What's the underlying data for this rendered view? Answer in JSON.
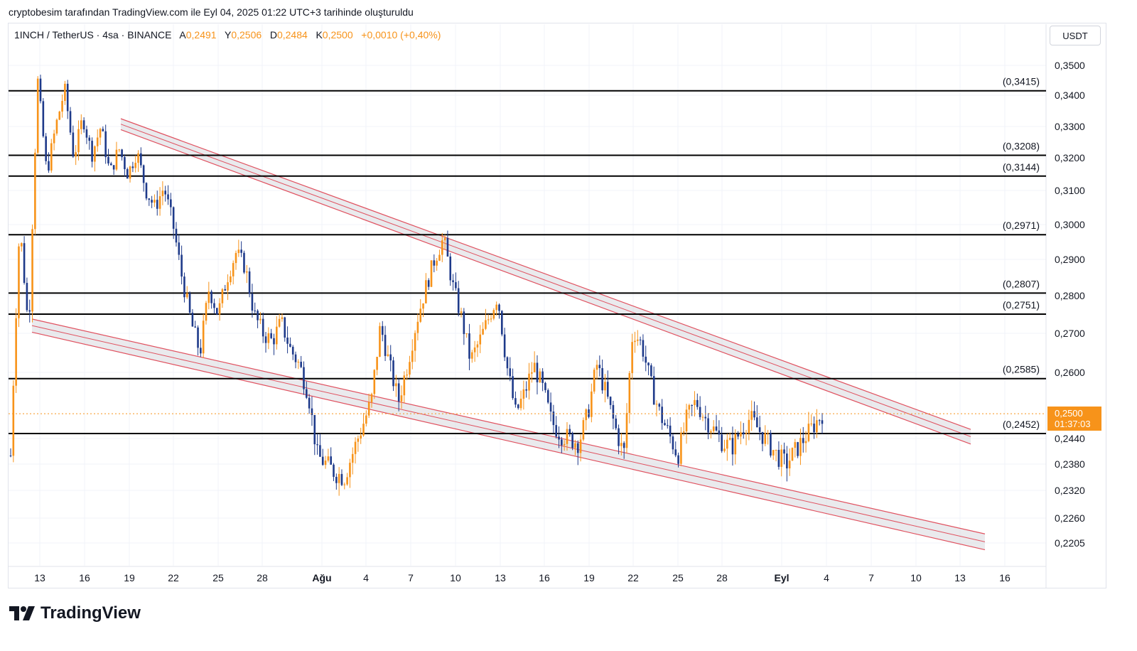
{
  "caption": "cryptobesim tarafından TradingView.com ile Eyl 04, 2025 01:22 UTC+3 tarihinde oluşturuldu",
  "legend": {
    "symbol": "1INCH / TetherUS · 4sa · BINANCE",
    "open_label": "A",
    "open": "0,2491",
    "high_label": "Y",
    "high": "0,2506",
    "low_label": "D",
    "low": "0,2484",
    "close_label": "K",
    "close": "0,2500",
    "change": "+0,0010 (+0,40%)"
  },
  "unit": "USDT",
  "current_price": {
    "value": "0,2500",
    "countdown": "01:37:03"
  },
  "brand": "TradingView",
  "colors": {
    "up": "#f7931a",
    "down": "#1e3a8a",
    "channel": "#e05260",
    "channel_fill": "#d9d9de",
    "level_line": "#000000",
    "accent": "#f7931a"
  },
  "chart_data": {
    "type": "candlestick",
    "x_ticks": [
      "13",
      "16",
      "19",
      "22",
      "25",
      "28",
      "Ağu",
      "4",
      "7",
      "10",
      "13",
      "16",
      "19",
      "22",
      "25",
      "28",
      "Eyl",
      "4",
      "7",
      "10",
      "13",
      "16"
    ],
    "y_ticks": [
      "0,3500",
      "0,3400",
      "0,3300",
      "0,3200",
      "0,3100",
      "0,3000",
      "0,2900",
      "0,2800",
      "0,2700",
      "0,2600",
      "0,2440",
      "0,2380",
      "0,2320",
      "0,2260",
      "0,2205"
    ],
    "y_tick_values": [
      0.35,
      0.34,
      0.33,
      0.32,
      0.31,
      0.3,
      0.29,
      0.28,
      0.27,
      0.26,
      0.244,
      0.238,
      0.232,
      0.226,
      0.2205
    ],
    "horizontal_levels": [
      {
        "value": 0.3415,
        "label": "(0,3415)"
      },
      {
        "value": 0.3208,
        "label": "(0,3208)"
      },
      {
        "value": 0.3144,
        "label": "(0,3144)"
      },
      {
        "value": 0.2971,
        "label": "(0,2971)"
      },
      {
        "value": 0.2807,
        "label": "(0,2807)"
      },
      {
        "value": 0.2751,
        "label": "(0,2751)"
      },
      {
        "value": 0.2585,
        "label": "(0,2585)"
      },
      {
        "value": 0.2452,
        "label": "(0,2452)"
      }
    ],
    "last_price": 0.25,
    "series_path": [
      [
        0,
        0.24
      ],
      [
        1,
        0.3
      ],
      [
        2,
        0.27
      ],
      [
        3,
        0.345
      ],
      [
        4,
        0.315
      ],
      [
        5,
        0.33
      ],
      [
        6,
        0.342
      ],
      [
        7,
        0.32
      ],
      [
        8,
        0.333
      ],
      [
        9,
        0.321
      ],
      [
        10,
        0.33
      ],
      [
        11,
        0.315
      ],
      [
        12,
        0.323
      ],
      [
        13,
        0.315
      ],
      [
        14,
        0.322
      ],
      [
        15,
        0.31
      ],
      [
        16,
        0.305
      ],
      [
        17,
        0.311
      ],
      [
        18,
        0.3
      ],
      [
        19,
        0.285
      ],
      [
        20,
        0.273
      ],
      [
        21,
        0.265
      ],
      [
        22,
        0.282
      ],
      [
        23,
        0.275
      ],
      [
        24,
        0.285
      ],
      [
        25,
        0.292
      ],
      [
        26,
        0.288
      ],
      [
        27,
        0.275
      ],
      [
        28,
        0.27
      ],
      [
        29,
        0.268
      ],
      [
        30,
        0.273
      ],
      [
        31,
        0.266
      ],
      [
        32,
        0.262
      ],
      [
        33,
        0.255
      ],
      [
        34,
        0.24
      ],
      [
        35,
        0.238
      ],
      [
        36,
        0.236
      ],
      [
        37,
        0.235
      ],
      [
        38,
        0.241
      ],
      [
        39,
        0.247
      ],
      [
        40,
        0.253
      ],
      [
        41,
        0.272
      ],
      [
        42,
        0.262
      ],
      [
        43,
        0.253
      ],
      [
        44,
        0.262
      ],
      [
        45,
        0.273
      ],
      [
        46,
        0.282
      ],
      [
        47,
        0.29
      ],
      [
        48,
        0.296
      ],
      [
        49,
        0.283
      ],
      [
        50,
        0.274
      ],
      [
        51,
        0.263
      ],
      [
        52,
        0.268
      ],
      [
        53,
        0.274
      ],
      [
        54,
        0.28
      ],
      [
        55,
        0.262
      ],
      [
        56,
        0.25
      ],
      [
        57,
        0.255
      ],
      [
        58,
        0.262
      ],
      [
        59,
        0.256
      ],
      [
        60,
        0.248
      ],
      [
        61,
        0.245
      ],
      [
        62,
        0.244
      ],
      [
        63,
        0.243
      ],
      [
        64,
        0.25
      ],
      [
        65,
        0.262
      ],
      [
        66,
        0.255
      ],
      [
        67,
        0.247
      ],
      [
        68,
        0.24
      ],
      [
        69,
        0.271
      ],
      [
        70,
        0.267
      ],
      [
        71,
        0.257
      ],
      [
        72,
        0.25
      ],
      [
        73,
        0.245
      ],
      [
        74,
        0.24
      ],
      [
        75,
        0.249
      ],
      [
        76,
        0.253
      ],
      [
        77,
        0.249
      ],
      [
        78,
        0.246
      ],
      [
        79,
        0.243
      ],
      [
        80,
        0.242
      ],
      [
        81,
        0.246
      ],
      [
        82,
        0.249
      ],
      [
        83,
        0.246
      ],
      [
        84,
        0.243
      ],
      [
        85,
        0.24
      ],
      [
        86,
        0.238
      ],
      [
        87,
        0.241
      ],
      [
        88,
        0.244
      ],
      [
        89,
        0.247
      ],
      [
        90,
        0.25
      ]
    ],
    "channel_upper": {
      "start_date": "19",
      "start_price": 0.3325,
      "end_date": "13 Eyl",
      "end_price": 0.2462,
      "band": 0.0035
    },
    "channel_lower": {
      "start_date": "13",
      "start_price": 0.2738,
      "end_date": "14 Eyl",
      "end_price": 0.2225,
      "band": 0.0035
    }
  }
}
